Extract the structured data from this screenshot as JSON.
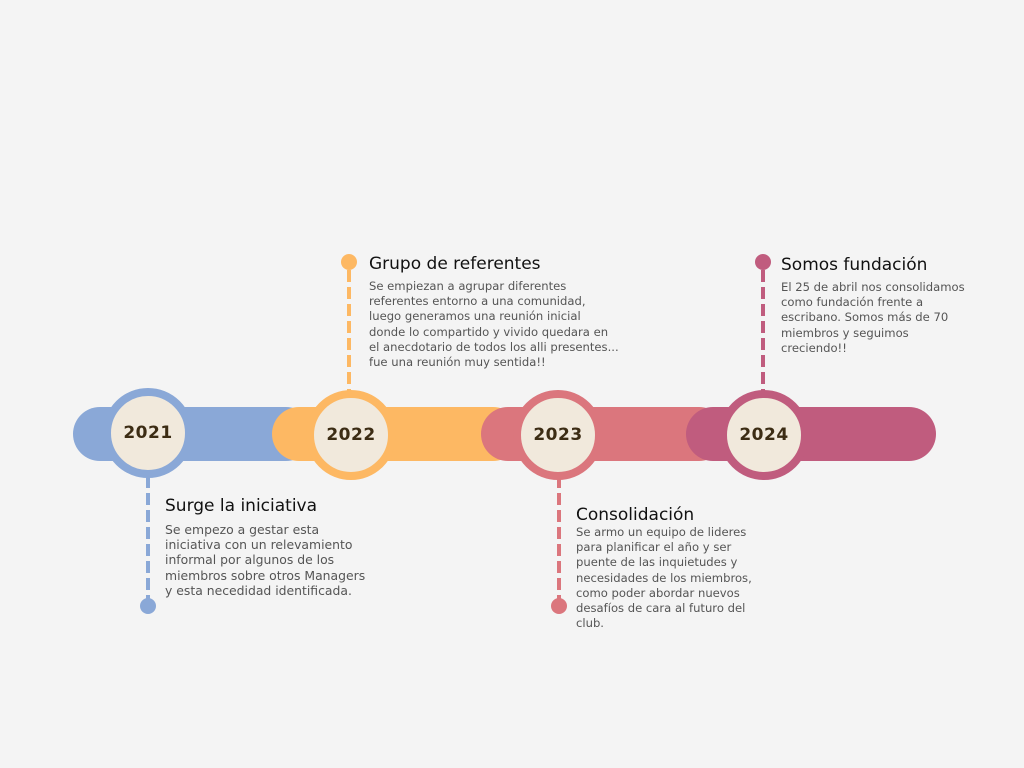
{
  "timeline": {
    "colors": {
      "y2021": "#8aa8d7",
      "y2022": "#fdb863",
      "y2023": "#db767d",
      "y2024": "#c05c7e"
    },
    "milestones": [
      {
        "year": "2021",
        "title": "Surge la iniciativa",
        "description": "Se empezo a gestar esta\niniciativa con un relevamiento\ninformal por algunos de los\nmiembros sobre otros Managers\ny esta necedidad identificada."
      },
      {
        "year": "2022",
        "title": "Grupo de referentes",
        "description": "Se empiezan a agrupar diferentes\nreferentes entorno a una comunidad,\nluego generamos una reunión inicial\ndonde lo compartido y vivido quedara en\nel anecdotario de todos los alli presentes...\nfue una reunión muy sentida!!"
      },
      {
        "year": "2023",
        "title": "Consolidación",
        "description": "Se armo un equipo de lideres\npara planificar el año y ser\npuente de las inquietudes y\nnecesidades de los miembros,\ncomo poder abordar nuevos\ndesafíos de cara al futuro del\nclub."
      },
      {
        "year": "2024",
        "title": "Somos fundación",
        "description": "El 25 de abril nos consolidamos\ncomo fundación frente a\nescribano. Somos más de 70\nmiembros y seguimos\ncreciendo!!"
      }
    ]
  }
}
